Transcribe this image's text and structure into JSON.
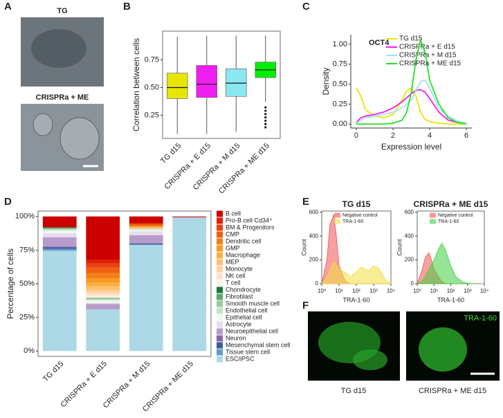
{
  "figure": {
    "panel_labels": [
      "A",
      "B",
      "C",
      "D",
      "E",
      "F"
    ],
    "panel_a": {
      "labels": [
        "TG",
        "CRISPRa + ME"
      ]
    },
    "panel_f": {
      "labels": [
        "TG d15",
        "CRISPRa + ME d15"
      ],
      "stain": "TRA-1-60"
    }
  },
  "chart_data": [
    {
      "type": "box",
      "ylabel": "Correlation between cells",
      "categories": [
        "TG d15",
        "CRISPRa + E d15",
        "CRISPRa + M d15",
        "CRISPRa + ME d15"
      ],
      "colors": [
        "#e6e600",
        "#f01ef0",
        "#8ae8f2",
        "#00ee00"
      ],
      "boxes": [
        {
          "whislo": 0.08,
          "q1": 0.4,
          "med": 0.5,
          "q3": 0.63,
          "whishi": 0.96
        },
        {
          "whislo": 0.08,
          "q1": 0.41,
          "med": 0.53,
          "q3": 0.7,
          "whishi": 0.97
        },
        {
          "whislo": 0.1,
          "q1": 0.42,
          "med": 0.54,
          "q3": 0.67,
          "whishi": 0.97
        },
        {
          "whislo": 0.37,
          "q1": 0.59,
          "med": 0.66,
          "q3": 0.73,
          "whishi": 0.97,
          "fliers": [
            0.32,
            0.29,
            0.26,
            0.23,
            0.2,
            0.17,
            0.14
          ]
        }
      ],
      "ylim": [
        0.04,
        1.01
      ],
      "yticks": [
        {
          "value": 0.25,
          "label": "0.25"
        },
        {
          "value": 0.5,
          "label": "0.50"
        },
        {
          "value": 0.75,
          "label": "0.75"
        }
      ]
    },
    {
      "type": "line",
      "annotation": "OCT4",
      "xlabel": "Expression level",
      "ylabel": "Density",
      "x": [
        0,
        0.25,
        0.5,
        1,
        1.5,
        2,
        2.5,
        2.75,
        3,
        3.25,
        3.5,
        3.75,
        4,
        4.5,
        5,
        5.5,
        6
      ],
      "series": [
        {
          "name": "TG d15",
          "color": "#e6e600",
          "values": [
            0.45,
            0.35,
            0.18,
            0.1,
            0.08,
            0.12,
            0.3,
            0.42,
            0.45,
            0.35,
            0.15,
            0.06,
            0.03,
            0.01,
            0,
            0,
            0
          ]
        },
        {
          "name": "CRISPRa + E d15",
          "color": "#f01ef0",
          "values": [
            0.02,
            0.08,
            0.1,
            0.12,
            0.15,
            0.2,
            0.28,
            0.33,
            0.38,
            0.42,
            0.43,
            0.4,
            0.32,
            0.15,
            0.05,
            0.02,
            0.01
          ]
        },
        {
          "name": "CRISPRa + M d15",
          "color": "#9ee4f0",
          "values": [
            0.01,
            0.05,
            0.08,
            0.1,
            0.12,
            0.15,
            0.2,
            0.25,
            0.3,
            0.42,
            0.53,
            0.55,
            0.45,
            0.2,
            0.1,
            0.04,
            0.01
          ]
        },
        {
          "name": "CRISPRa + ME d15",
          "color": "#22e022",
          "values": [
            0,
            0,
            0,
            0,
            0,
            0.01,
            0.05,
            0.15,
            0.4,
            0.8,
            1.05,
            0.9,
            0.55,
            0.25,
            0.08,
            0.02,
            0
          ]
        }
      ],
      "xlim": [
        -0.3,
        6.3
      ],
      "xticks": [
        0,
        2,
        4,
        6
      ],
      "ylim": [
        -0.05,
        1.12
      ],
      "yticks": [
        {
          "value": 0,
          "label": "0.00"
        },
        {
          "value": 0.25,
          "label": "0.25"
        },
        {
          "value": 0.5,
          "label": "0.50"
        },
        {
          "value": 0.75,
          "label": "0.75"
        },
        {
          "value": 1,
          "label": "1.00"
        }
      ]
    },
    {
      "type": "stacked_bar",
      "ylabel": "Percentage of cells",
      "categories": [
        "TG d15",
        "CRISPRa + E d15",
        "CRISPRa + M d15",
        "CRISPRa + ME d15"
      ],
      "series": [
        {
          "name": "ESC/iPSC",
          "color": "#add8e6",
          "values": [
            74.5,
            31,
            79,
            99
          ]
        },
        {
          "name": "Tissue stem cell",
          "color": "#6699cc",
          "values": [
            1.5,
            0,
            0,
            0
          ]
        },
        {
          "name": "Mesenchymal stem cell",
          "color": "#3a5da0",
          "values": [
            1,
            0,
            1,
            0
          ]
        },
        {
          "name": "Neuron",
          "color": "#8e64a8",
          "values": [
            0.5,
            0,
            0,
            0
          ]
        },
        {
          "name": "Neuroepithelial cell",
          "color": "#b79ccb",
          "values": [
            7,
            4,
            6,
            0.5
          ]
        },
        {
          "name": "Astrocyte",
          "color": "#e6dcec",
          "values": [
            3,
            1,
            3,
            0
          ]
        },
        {
          "name": "Epithelial cell",
          "color": "#f2f7f2",
          "values": [
            2,
            1.5,
            1,
            0
          ]
        },
        {
          "name": "Endothelial cell",
          "color": "#c5e3c5",
          "values": [
            1,
            1,
            1,
            0
          ]
        },
        {
          "name": "Smooth muscle cell",
          "color": "#95c99a",
          "values": [
            0.5,
            0.5,
            0,
            0
          ]
        },
        {
          "name": "Fibroblast",
          "color": "#5ba86a",
          "values": [
            0.5,
            0.5,
            0,
            0
          ]
        },
        {
          "name": "Chondrocyte",
          "color": "#1a7a3a",
          "values": [
            0.5,
            0,
            0,
            0
          ]
        },
        {
          "name": "T cell",
          "color": "#fef0e6",
          "values": [
            0,
            1.5,
            0,
            0
          ]
        },
        {
          "name": "NK cell",
          "color": "#fde0c8",
          "values": [
            0,
            2,
            0,
            0
          ]
        },
        {
          "name": "Monocyte",
          "color": "#fdd0a0",
          "values": [
            0,
            2,
            0,
            0
          ]
        },
        {
          "name": "MEP",
          "color": "#fcc070",
          "values": [
            0,
            3,
            1,
            0
          ]
        },
        {
          "name": "Macrophage",
          "color": "#fbb040",
          "values": [
            0,
            3,
            0,
            0
          ]
        },
        {
          "name": "GMP",
          "color": "#f89a20",
          "values": [
            0,
            3,
            1,
            0
          ]
        },
        {
          "name": "Dendritic cell",
          "color": "#f57f17",
          "values": [
            0,
            4,
            0,
            0
          ]
        },
        {
          "name": "CMP",
          "color": "#f06010",
          "values": [
            0,
            4,
            1,
            0
          ]
        },
        {
          "name": "BM & Progenitors",
          "color": "#e84010",
          "values": [
            0,
            3,
            1,
            0
          ]
        },
        {
          "name": "Pro-B cell Cd34⁺",
          "color": "#dd2200",
          "values": [
            0,
            3,
            0,
            0
          ]
        },
        {
          "name": "B cell",
          "color": "#cc0000",
          "values": [
            8,
            32,
            5,
            0.5
          ]
        }
      ],
      "ylim": [
        -4,
        104
      ],
      "yticks": [
        {
          "value": 0,
          "label": "0%"
        },
        {
          "value": 25,
          "label": "25%"
        },
        {
          "value": 50,
          "label": "50%"
        },
        {
          "value": 75,
          "label": "75%"
        },
        {
          "value": 100,
          "label": "100%"
        }
      ]
    },
    {
      "type": "area",
      "title": "TG d15",
      "xlabel": "TRA-1-60",
      "ylabel": "Count",
      "xscale": "log",
      "x": [
        1,
        2,
        3,
        5,
        7,
        10,
        20,
        30,
        50,
        100,
        200,
        500,
        1000,
        2000,
        5000,
        10000
      ],
      "series": [
        {
          "name": "Negative control",
          "color": "#f25050",
          "values": [
            0,
            200,
            500,
            580,
            400,
            150,
            40,
            10,
            0,
            0,
            0,
            0,
            0,
            0,
            0,
            0
          ]
        },
        {
          "name": "TRA-1-60",
          "color": "#f0e040",
          "values": [
            0,
            50,
            120,
            180,
            160,
            120,
            100,
            80,
            60,
            100,
            140,
            110,
            150,
            130,
            30,
            0
          ]
        }
      ],
      "xlim": [
        1,
        10000
      ],
      "xticks": [
        {
          "value": 1,
          "label": "10⁰"
        },
        {
          "value": 10,
          "label": "10¹"
        },
        {
          "value": 100,
          "label": "10²"
        },
        {
          "value": 1000,
          "label": "10³"
        },
        {
          "value": 10000,
          "label": "10⁴"
        }
      ],
      "ylim": [
        0,
        610
      ],
      "yticks": [
        0,
        200,
        400,
        600
      ]
    },
    {
      "type": "area",
      "title": "CRISPRa + ME d15",
      "xlabel": "TRA-1-60",
      "ylabel": "Count",
      "xscale": "log",
      "x": [
        1,
        2,
        3,
        5,
        7,
        10,
        20,
        30,
        50,
        100,
        200,
        500,
        1000,
        2000,
        5000,
        10000
      ],
      "series": [
        {
          "name": "Negative control",
          "color": "#f25050",
          "values": [
            0,
            120,
            220,
            260,
            200,
            120,
            50,
            15,
            0,
            0,
            0,
            0,
            0,
            0,
            0,
            0
          ]
        },
        {
          "name": "TRA-1-60",
          "color": "#40d040",
          "values": [
            0,
            20,
            60,
            120,
            160,
            200,
            300,
            340,
            280,
            150,
            60,
            15,
            5,
            0,
            0,
            0
          ]
        }
      ],
      "xlim": [
        1,
        10000
      ],
      "xticks": [
        {
          "value": 1,
          "label": "10⁰"
        },
        {
          "value": 10,
          "label": "10¹"
        },
        {
          "value": 100,
          "label": "10²"
        },
        {
          "value": 1000,
          "label": "10³"
        },
        {
          "value": 10000,
          "label": "10⁴"
        }
      ],
      "ylim": [
        0,
        610
      ],
      "yticks": [
        0,
        200,
        400,
        600
      ]
    }
  ]
}
